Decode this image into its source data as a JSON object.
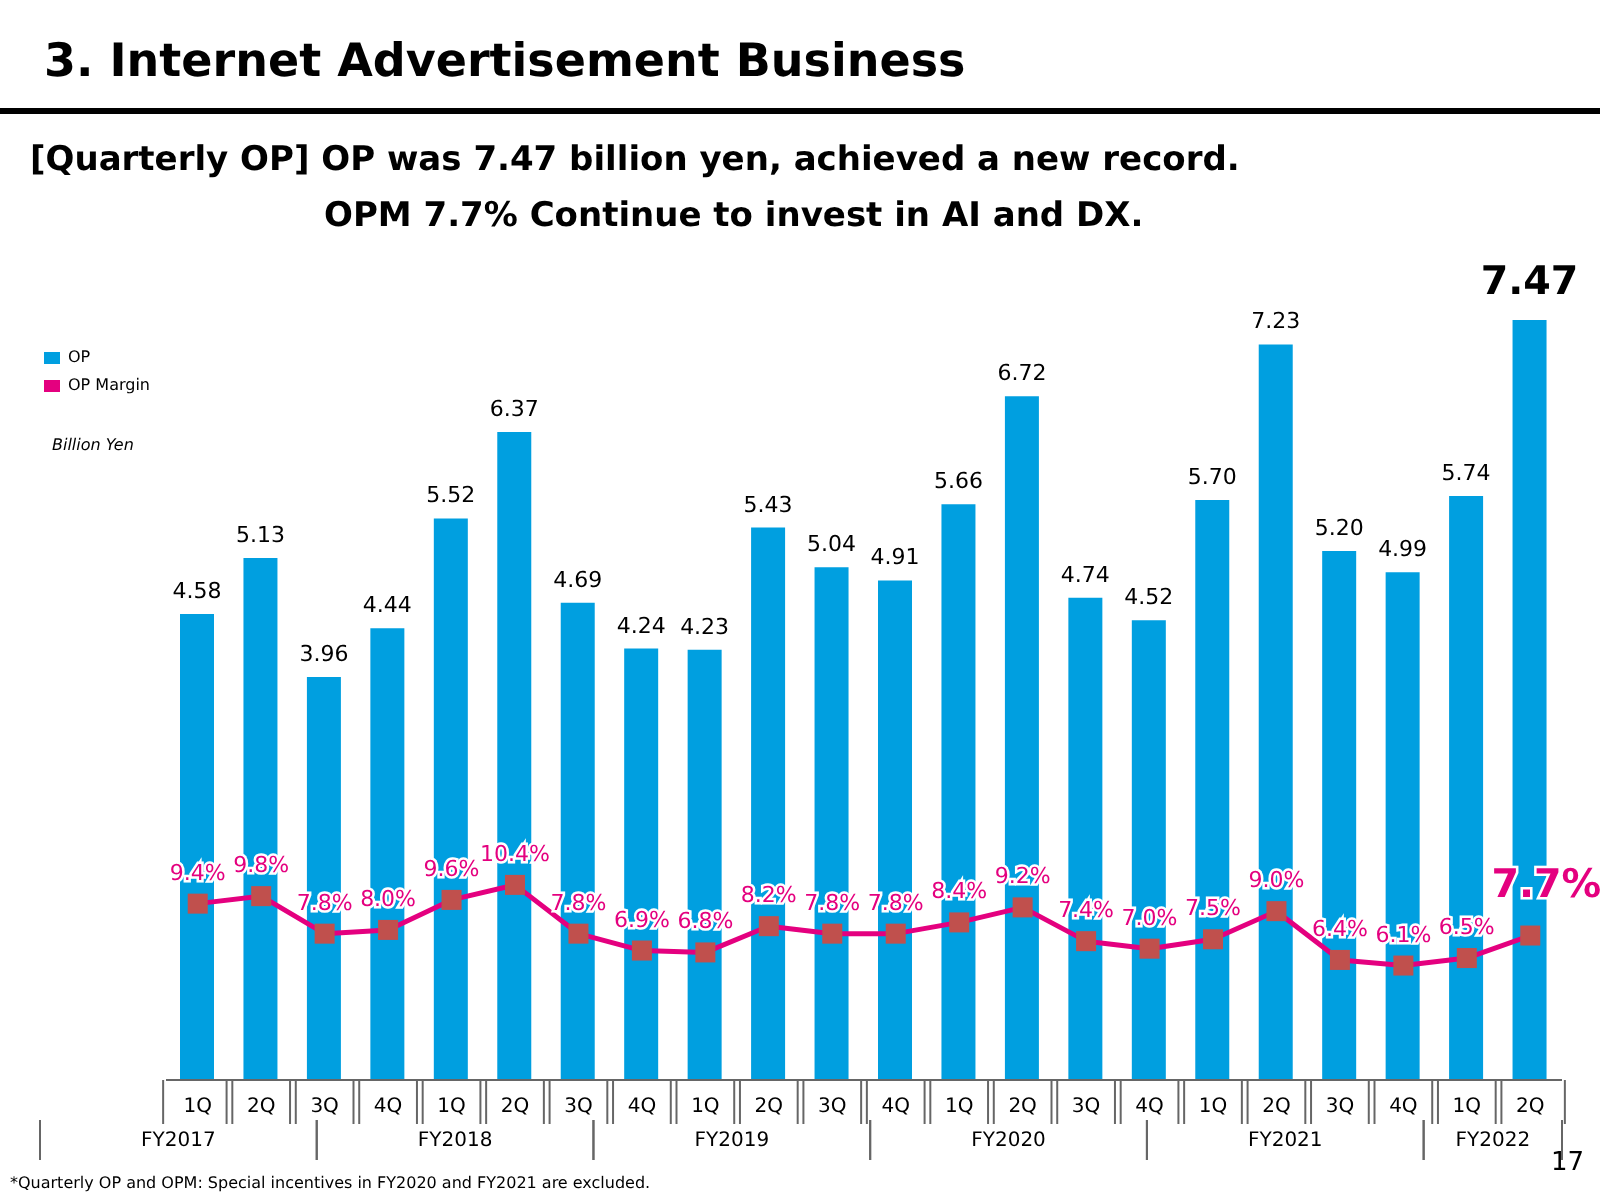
{
  "chart_data": {
    "type": "bar",
    "title": "3. Internet Advertisement Business",
    "subtitle": "[Quarterly OP]  OP was 7.47 billion yen, achieved a new record.\nOPM 7.7%  Continue to invest in AI and DX.",
    "categories": [
      "1Q",
      "2Q",
      "3Q",
      "4Q",
      "1Q",
      "2Q",
      "3Q",
      "4Q",
      "1Q",
      "2Q",
      "3Q",
      "4Q",
      "1Q",
      "2Q",
      "3Q",
      "4Q",
      "1Q",
      "2Q",
      "3Q",
      "4Q",
      "1Q",
      "2Q"
    ],
    "series": [
      {
        "name": "OP",
        "color": "#009fe0",
        "values": [
          4.58,
          5.13,
          3.96,
          4.44,
          5.52,
          6.37,
          4.69,
          4.24,
          4.23,
          5.43,
          5.04,
          4.91,
          5.66,
          6.72,
          4.74,
          4.52,
          5.7,
          7.23,
          5.2,
          4.99,
          5.74,
          7.47
        ],
        "value_labels": [
          "4.58",
          "5.13",
          "3.96",
          "4.44",
          "5.52",
          "6.37",
          "4.69",
          "4.24",
          "4.23",
          "5.43",
          "5.04",
          "4.91",
          "5.66",
          "6.72",
          "4.74",
          "4.52",
          "5.70",
          "7.23",
          "5.20",
          "4.99",
          "5.74",
          "7.47"
        ]
      },
      {
        "name": "OP Margin",
        "type": "line",
        "axis": "y2",
        "color": "#e4007f",
        "marker": "square",
        "values": [
          9.4,
          9.8,
          7.8,
          8.0,
          9.6,
          10.4,
          7.8,
          6.9,
          6.8,
          8.2,
          7.8,
          7.8,
          8.4,
          9.2,
          7.4,
          7.0,
          7.5,
          9.0,
          6.4,
          6.1,
          6.5,
          7.7
        ],
        "value_labels": [
          "9.4%",
          "9.8%",
          "7.8%",
          "8.0%",
          "9.6%",
          "10.4%",
          "7.8%",
          "6.9%",
          "6.8%",
          "8.2%",
          "7.8%",
          "7.8%",
          "8.4%",
          "9.2%",
          "7.4%",
          "7.0%",
          "7.5%",
          "9.0%",
          "6.4%",
          "6.1%",
          "6.5%",
          "7.7%"
        ]
      }
    ],
    "legend": "top left",
    "annotations": [
      "Billion Yen",
      "*Quarterly OP and OPM: Special incentives in FY2020 and FY2021 are excluded.",
      "17",
      "FY2017",
      "FY2018",
      "FY2019",
      "FY2020",
      "FY2021",
      "FY2022"
    ]
  }
}
